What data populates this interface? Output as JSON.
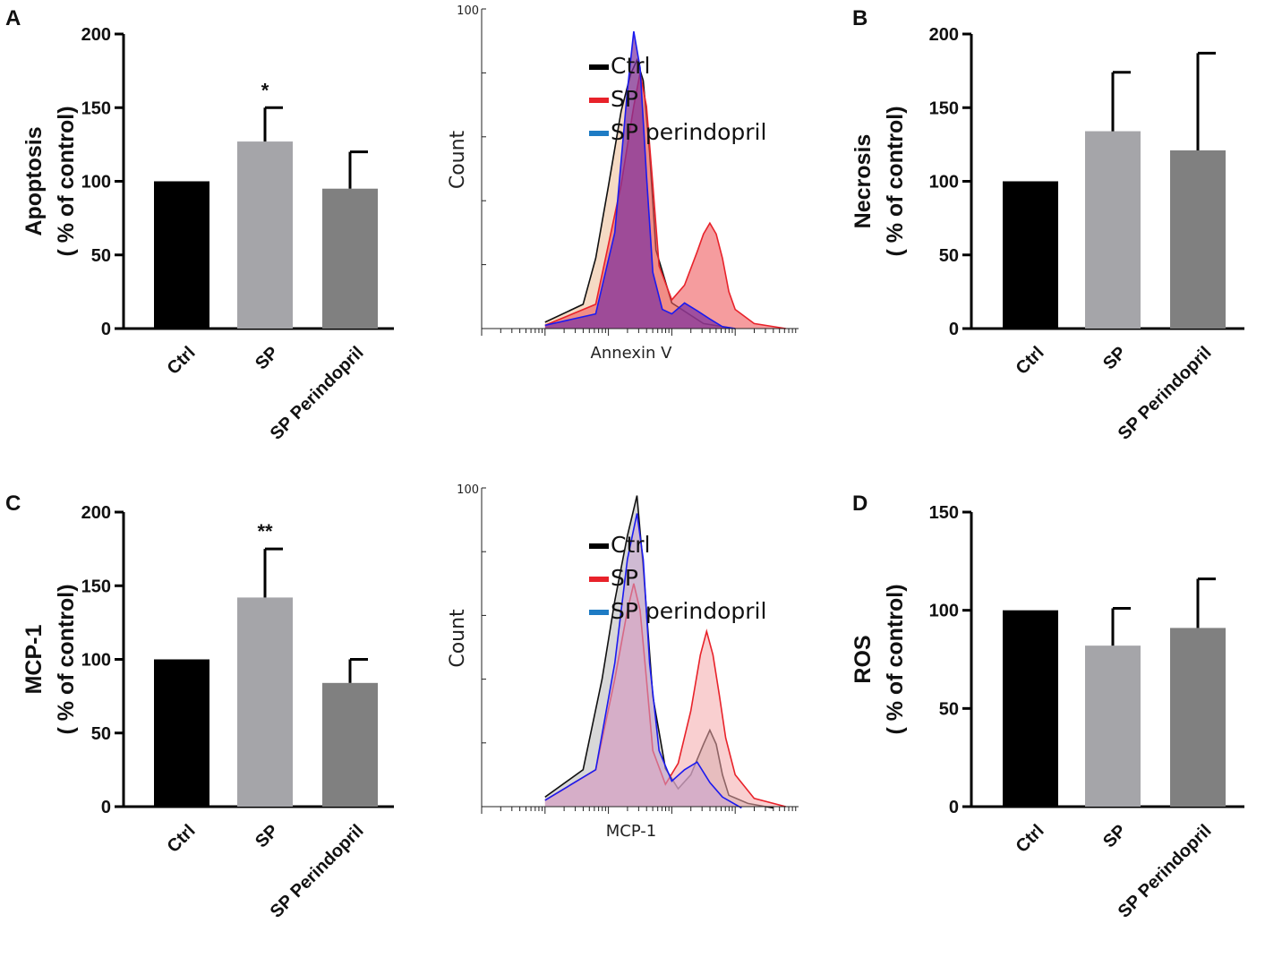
{
  "panels": [
    {
      "letter": "A"
    },
    {
      "letter": "B"
    },
    {
      "letter": "C"
    },
    {
      "letter": "D"
    }
  ],
  "chart_data": [
    {
      "id": "bar-apoptosis",
      "type": "bar",
      "panel": "A",
      "ylabel_line1": "Apoptosis",
      "ylabel_line2": "( %  of control)",
      "categories": [
        "Ctrl",
        "SP",
        "SP Perindopril"
      ],
      "values": [
        100,
        127,
        95
      ],
      "errors": [
        0,
        23,
        25
      ],
      "significance": [
        "",
        "*",
        ""
      ],
      "ylim": [
        0,
        200
      ],
      "yticks": [
        "0",
        "50",
        "100",
        "150",
        "200"
      ],
      "colors": [
        "#000000",
        "#a5a5a9",
        "#808080"
      ]
    },
    {
      "id": "flow-annexin",
      "type": "area",
      "xlabel": "Annexin V",
      "ylabel": "Count",
      "ymax_label": "100",
      "legend": [
        {
          "label": "Ctrl",
          "color": "#000000"
        },
        {
          "label": "SP",
          "color": "#e8222a"
        },
        {
          "label": "SP perindopril",
          "color": "#1e7bc4"
        }
      ],
      "x_scale": "log",
      "series": [
        {
          "name": "Ctrl",
          "x": [
            1.0,
            1.6,
            1.8,
            2.0,
            2.2,
            2.35,
            2.45,
            2.55,
            2.65,
            2.75,
            3.0,
            3.5,
            4.0
          ],
          "y": [
            2,
            8,
            22,
            45,
            68,
            80,
            84,
            78,
            55,
            25,
            8,
            2,
            0
          ]
        },
        {
          "name": "SP",
          "x": [
            1.0,
            1.8,
            2.2,
            2.4,
            2.5,
            2.6,
            2.7,
            2.8,
            3.0,
            3.2,
            3.4,
            3.5,
            3.6,
            3.7,
            3.8,
            3.9,
            4.0,
            4.3,
            4.8
          ],
          "y": [
            1,
            8,
            45,
            70,
            80,
            70,
            45,
            20,
            9,
            14,
            24,
            30,
            33,
            30,
            22,
            12,
            6,
            2,
            0
          ]
        },
        {
          "name": "SP perindopril",
          "x": [
            1.0,
            1.8,
            2.1,
            2.3,
            2.4,
            2.5,
            2.6,
            2.7,
            2.85,
            3.0,
            3.2,
            3.4,
            3.6,
            3.8,
            4.0
          ],
          "y": [
            1,
            5,
            30,
            75,
            93,
            82,
            48,
            18,
            6,
            5,
            8,
            6,
            3,
            1,
            0
          ]
        }
      ]
    },
    {
      "id": "bar-necrosis",
      "type": "bar",
      "panel": "B",
      "ylabel_line1": "Necrosis",
      "ylabel_line2": "( %  of control)",
      "categories": [
        "Ctrl",
        "SP",
        "SP Perindopril"
      ],
      "values": [
        100,
        134,
        121
      ],
      "errors": [
        0,
        40,
        66
      ],
      "significance": [
        "",
        "",
        ""
      ],
      "ylim": [
        0,
        200
      ],
      "yticks": [
        "0",
        "50",
        "100",
        "150",
        "200"
      ],
      "colors": [
        "#000000",
        "#a5a5a9",
        "#808080"
      ]
    },
    {
      "id": "bar-mcp1",
      "type": "bar",
      "panel": "C",
      "ylabel_line1": "MCP-1",
      "ylabel_line2": "( %  of control)",
      "categories": [
        "Ctrl",
        "SP",
        "SP Perindopril"
      ],
      "values": [
        100,
        142,
        84
      ],
      "errors": [
        0,
        33,
        16
      ],
      "significance": [
        "",
        "**",
        ""
      ],
      "ylim": [
        0,
        200
      ],
      "yticks": [
        "0",
        "50",
        "100",
        "150",
        "200"
      ],
      "colors": [
        "#000000",
        "#a5a5a9",
        "#808080"
      ]
    },
    {
      "id": "flow-mcp1",
      "type": "area",
      "xlabel": "MCP-1",
      "ylabel": "Count",
      "ymax_label": "100",
      "legend": [
        {
          "label": "Ctrl",
          "color": "#000000"
        },
        {
          "label": "SP",
          "color": "#e8222a"
        },
        {
          "label": "SP perindopril",
          "color": "#1e7bc4"
        }
      ],
      "x_scale": "log",
      "series": [
        {
          "name": "Ctrl",
          "x": [
            1.0,
            1.6,
            1.9,
            2.1,
            2.3,
            2.45,
            2.55,
            2.7,
            2.9,
            3.1,
            3.3,
            3.5,
            3.6,
            3.7,
            3.8,
            3.9,
            4.2,
            4.6
          ],
          "y": [
            3,
            12,
            40,
            65,
            85,
            98,
            75,
            35,
            12,
            6,
            10,
            20,
            24,
            20,
            10,
            4,
            1,
            0
          ]
        },
        {
          "name": "SP",
          "x": [
            1.0,
            1.8,
            2.1,
            2.3,
            2.4,
            2.5,
            2.6,
            2.7,
            2.9,
            3.1,
            3.3,
            3.45,
            3.55,
            3.65,
            3.75,
            3.85,
            4.0,
            4.3,
            4.8
          ],
          "y": [
            2,
            12,
            40,
            62,
            70,
            62,
            40,
            18,
            7,
            14,
            30,
            48,
            55,
            48,
            35,
            22,
            10,
            3,
            0
          ]
        },
        {
          "name": "SP perindopril",
          "x": [
            1.0,
            1.8,
            2.1,
            2.3,
            2.45,
            2.55,
            2.65,
            2.8,
            3.0,
            3.2,
            3.4,
            3.6,
            3.8,
            4.1
          ],
          "y": [
            2,
            12,
            45,
            78,
            92,
            78,
            45,
            18,
            8,
            12,
            14,
            8,
            3,
            0
          ]
        }
      ]
    },
    {
      "id": "bar-ros",
      "type": "bar",
      "panel": "D",
      "ylabel_line1": "ROS",
      "ylabel_line2": "( %  of control)",
      "categories": [
        "Ctrl",
        "SP",
        "SP Perindopril"
      ],
      "values": [
        100,
        82,
        91
      ],
      "errors": [
        0,
        19,
        25
      ],
      "significance": [
        "",
        "",
        ""
      ],
      "ylim": [
        0,
        150
      ],
      "yticks": [
        "0",
        "50",
        "100",
        "150"
      ],
      "colors": [
        "#000000",
        "#a5a5a9",
        "#808080"
      ]
    }
  ]
}
